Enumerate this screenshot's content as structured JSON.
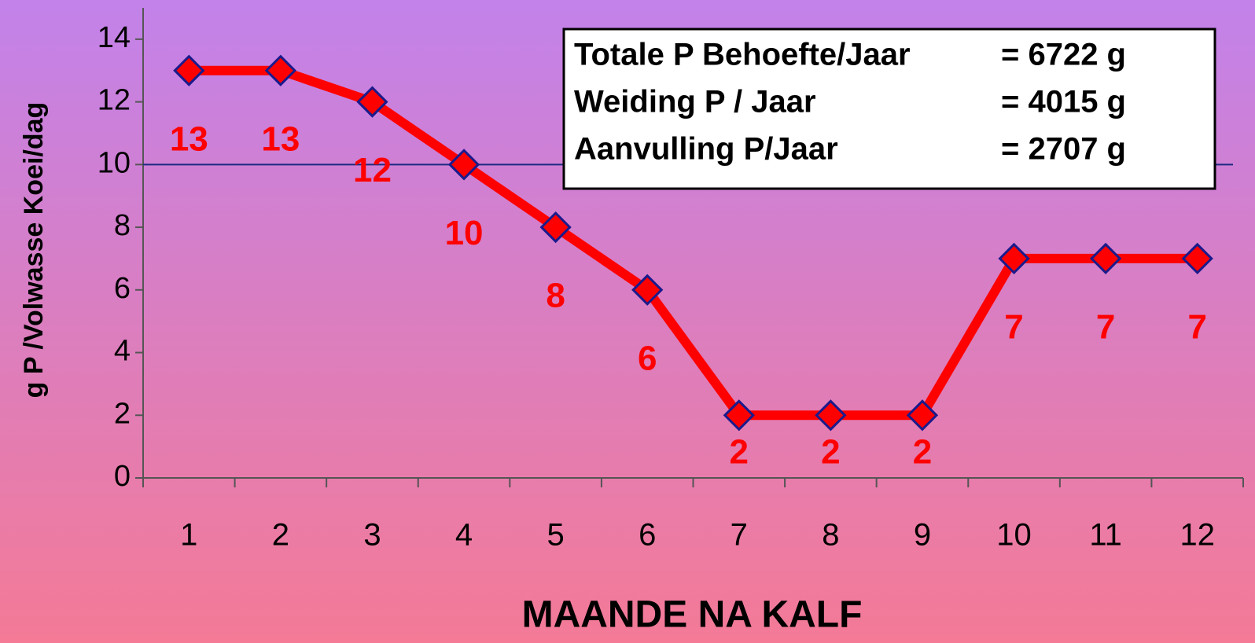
{
  "chart_data": {
    "type": "line",
    "x_label": "MAANDE NA KALF",
    "y_label": "g P /Volwasse Koei/dag",
    "categories": [
      "1",
      "2",
      "3",
      "4",
      "5",
      "6",
      "7",
      "8",
      "9",
      "10",
      "11",
      "12"
    ],
    "series": [
      {
        "name": "g P",
        "color": "#ff0000",
        "values": [
          13,
          13,
          12,
          10,
          8,
          6,
          2,
          2,
          2,
          7,
          7,
          7
        ]
      }
    ],
    "ylim": [
      0,
      15
    ],
    "yticks": [
      0,
      2,
      4,
      6,
      8,
      10,
      12,
      14
    ],
    "reference_line": 10,
    "info_box": [
      {
        "label": "Totale P Behoefte/Jaar",
        "value": "= 6722 g"
      },
      {
        "label": "Weiding P / Jaar",
        "value": "= 4015 g"
      },
      {
        "label": "Aanvulling P/Jaar",
        "value": "= 2707 g"
      }
    ]
  }
}
